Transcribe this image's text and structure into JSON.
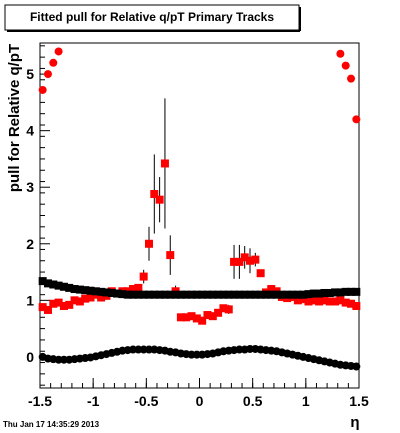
{
  "chart_data": {
    "type": "scatter",
    "title": "Fitted pull for Relative q/pT  Primary Tracks",
    "xlabel": "η",
    "ylabel": "pull for Relative q/pT",
    "xlim": [
      -1.5,
      1.5
    ],
    "ylim": [
      -0.55,
      5.55
    ],
    "x_ticks": [
      -1.5,
      -1,
      -0.5,
      0,
      0.5,
      1,
      1.5
    ],
    "x_tick_labels": [
      "-1.5",
      "-1",
      "-0.5",
      "0",
      "0.5",
      "1",
      "1.5"
    ],
    "y_ticks": [
      0,
      1,
      2,
      3,
      4,
      5
    ],
    "y_tick_labels": [
      "0",
      "1",
      "2",
      "3",
      "4",
      "5"
    ],
    "grid": false,
    "footer": "Thu Jan 17 14:35:29 2013",
    "series": [
      {
        "marker": "square",
        "color": "#ff0000",
        "x": [
          -1.475,
          -1.425,
          -1.375,
          -1.325,
          -1.275,
          -1.225,
          -1.175,
          -1.125,
          -1.075,
          -1.025,
          -0.975,
          -0.925,
          -0.875,
          -0.825,
          -0.775,
          -0.725,
          -0.675,
          -0.625,
          -0.575,
          -0.525,
          -0.475,
          -0.425,
          -0.375,
          -0.325,
          -0.275,
          -0.225,
          -0.175,
          -0.125,
          -0.075,
          -0.025,
          0.025,
          0.075,
          0.125,
          0.175,
          0.225,
          0.275,
          0.325,
          0.375,
          0.425,
          0.475,
          0.525,
          0.575,
          0.625,
          0.675,
          0.725,
          0.775,
          0.825,
          0.875,
          0.925,
          0.975,
          1.025,
          1.075,
          1.125,
          1.175,
          1.225,
          1.275,
          1.325,
          1.375,
          1.425,
          1.475
        ],
        "y": [
          0.88,
          0.83,
          0.94,
          0.96,
          0.9,
          0.92,
          1.0,
          0.98,
          1.03,
          1.05,
          1.1,
          1.05,
          1.08,
          1.16,
          1.12,
          1.16,
          1.16,
          1.2,
          1.22,
          1.42,
          2.0,
          2.88,
          2.78,
          3.42,
          1.8,
          1.16,
          0.7,
          0.7,
          0.72,
          0.68,
          0.64,
          0.74,
          0.72,
          0.78,
          0.86,
          0.84,
          1.68,
          1.68,
          1.76,
          1.7,
          1.72,
          1.48,
          1.14,
          1.2,
          1.16,
          1.06,
          1.04,
          1.06,
          1.0,
          1.02,
          0.98,
          1.0,
          0.98,
          1.0,
          0.98,
          0.98,
          1.0,
          0.96,
          0.94,
          0.9
        ],
        "yerr": [
          0.03,
          0.03,
          0.03,
          0.03,
          0.03,
          0.03,
          0.03,
          0.03,
          0.03,
          0.03,
          0.03,
          0.03,
          0.03,
          0.03,
          0.03,
          0.03,
          0.03,
          0.03,
          0.05,
          0.12,
          0.3,
          0.7,
          0.4,
          1.15,
          0.35,
          0.1,
          0.04,
          0.03,
          0.03,
          0.03,
          0.03,
          0.03,
          0.03,
          0.03,
          0.05,
          0.08,
          0.3,
          0.3,
          0.2,
          0.22,
          0.12,
          0.06,
          0.03,
          0.03,
          0.03,
          0.03,
          0.03,
          0.03,
          0.03,
          0.03,
          0.03,
          0.03,
          0.03,
          0.03,
          0.03,
          0.03,
          0.03,
          0.03,
          0.03,
          0.03
        ]
      },
      {
        "marker": "square",
        "color": "#000000",
        "x": [
          -1.475,
          -1.425,
          -1.375,
          -1.325,
          -1.275,
          -1.225,
          -1.175,
          -1.125,
          -1.075,
          -1.025,
          -0.975,
          -0.925,
          -0.875,
          -0.825,
          -0.775,
          -0.725,
          -0.675,
          -0.625,
          -0.575,
          -0.525,
          -0.475,
          -0.425,
          -0.375,
          -0.325,
          -0.275,
          -0.225,
          -0.175,
          -0.125,
          -0.075,
          -0.025,
          0.025,
          0.075,
          0.125,
          0.175,
          0.225,
          0.275,
          0.325,
          0.375,
          0.425,
          0.475,
          0.525,
          0.575,
          0.625,
          0.675,
          0.725,
          0.775,
          0.825,
          0.875,
          0.925,
          0.975,
          1.025,
          1.075,
          1.125,
          1.175,
          1.225,
          1.275,
          1.325,
          1.375,
          1.425,
          1.475
        ],
        "y": [
          1.34,
          1.3,
          1.28,
          1.26,
          1.24,
          1.22,
          1.2,
          1.19,
          1.18,
          1.17,
          1.16,
          1.15,
          1.14,
          1.13,
          1.12,
          1.11,
          1.1,
          1.1,
          1.1,
          1.1,
          1.1,
          1.1,
          1.1,
          1.1,
          1.1,
          1.1,
          1.1,
          1.1,
          1.1,
          1.1,
          1.1,
          1.1,
          1.1,
          1.1,
          1.1,
          1.1,
          1.1,
          1.1,
          1.1,
          1.1,
          1.1,
          1.1,
          1.1,
          1.1,
          1.1,
          1.1,
          1.1,
          1.1,
          1.1,
          1.1,
          1.11,
          1.12,
          1.12,
          1.13,
          1.13,
          1.14,
          1.14,
          1.15,
          1.15,
          1.15
        ]
      },
      {
        "marker": "circle",
        "color": "#000000",
        "x": [
          -1.475,
          -1.425,
          -1.375,
          -1.325,
          -1.275,
          -1.225,
          -1.175,
          -1.125,
          -1.075,
          -1.025,
          -0.975,
          -0.925,
          -0.875,
          -0.825,
          -0.775,
          -0.725,
          -0.675,
          -0.625,
          -0.575,
          -0.525,
          -0.475,
          -0.425,
          -0.375,
          -0.325,
          -0.275,
          -0.225,
          -0.175,
          -0.125,
          -0.075,
          -0.025,
          0.025,
          0.075,
          0.125,
          0.175,
          0.225,
          0.275,
          0.325,
          0.375,
          0.425,
          0.475,
          0.525,
          0.575,
          0.625,
          0.675,
          0.725,
          0.775,
          0.825,
          0.875,
          0.925,
          0.975,
          1.025,
          1.075,
          1.125,
          1.175,
          1.225,
          1.275,
          1.325,
          1.375,
          1.425,
          1.475
        ],
        "y": [
          0.0,
          -0.03,
          -0.04,
          -0.05,
          -0.05,
          -0.05,
          -0.04,
          -0.03,
          -0.02,
          -0.01,
          0.01,
          0.03,
          0.05,
          0.07,
          0.09,
          0.11,
          0.12,
          0.13,
          0.13,
          0.13,
          0.13,
          0.13,
          0.12,
          0.11,
          0.09,
          0.08,
          0.06,
          0.05,
          0.04,
          0.04,
          0.04,
          0.05,
          0.06,
          0.08,
          0.1,
          0.11,
          0.12,
          0.13,
          0.13,
          0.14,
          0.14,
          0.13,
          0.12,
          0.11,
          0.1,
          0.08,
          0.06,
          0.04,
          0.02,
          0.0,
          -0.02,
          -0.04,
          -0.06,
          -0.08,
          -0.1,
          -0.12,
          -0.14,
          -0.15,
          -0.16,
          -0.17
        ]
      },
      {
        "marker": "circle",
        "color": "#ff0000",
        "x": [
          -1.475,
          -1.425,
          -1.375,
          -1.325,
          1.325,
          1.375,
          1.425,
          1.475
        ],
        "y": [
          4.72,
          5.0,
          5.2,
          5.4,
          5.36,
          5.15,
          4.92,
          4.2
        ]
      }
    ]
  }
}
